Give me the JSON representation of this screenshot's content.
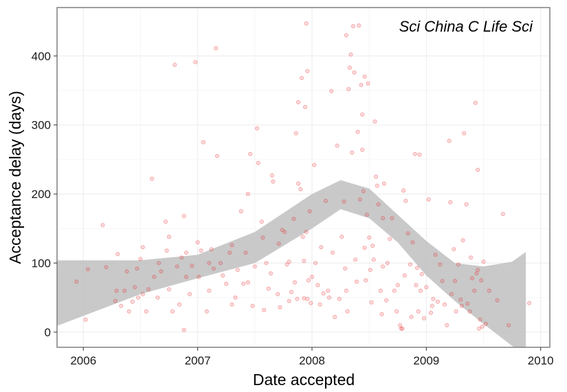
{
  "chart_data": {
    "type": "scatter",
    "title": "Sci China C Life Sci",
    "xlabel": "Date accepted",
    "ylabel": "Acceptance delay (days)",
    "xlim": [
      2005.77,
      2010.08
    ],
    "ylim": [
      -22,
      470
    ],
    "x_ticks": [
      {
        "value": 2006,
        "label": "2006"
      },
      {
        "value": 2007,
        "label": "2007"
      },
      {
        "value": 2008,
        "label": "2008"
      },
      {
        "value": 2009,
        "label": "2009"
      },
      {
        "value": 2010,
        "label": "2010"
      }
    ],
    "y_ticks": [
      {
        "value": 0,
        "label": "0"
      },
      {
        "value": 100,
        "label": "100"
      },
      {
        "value": 200,
        "label": "200"
      },
      {
        "value": 300,
        "label": "300"
      },
      {
        "value": 400,
        "label": "400"
      }
    ],
    "grid": true,
    "colors": {
      "points": "#e8191f",
      "band": "#c0c0c0",
      "grid": "#ebebeb",
      "border": "#7f7f7f"
    },
    "smooth_band": {
      "x": [
        2005.77,
        2006.5,
        2007.0,
        2007.5,
        2008.0,
        2008.25,
        2008.5,
        2008.75,
        2009.0,
        2009.25,
        2009.5,
        2009.75,
        2009.87
      ],
      "upper": [
        104,
        104,
        112,
        145,
        200,
        220,
        208,
        170,
        132,
        100,
        95,
        102,
        116
      ],
      "lower": [
        9,
        55,
        78,
        100,
        150,
        178,
        165,
        130,
        82,
        45,
        12,
        -20,
        -30
      ]
    },
    "points": [
      [
        2005.94,
        73
      ],
      [
        2006.02,
        18
      ],
      [
        2006.04,
        91
      ],
      [
        2006.17,
        155
      ],
      [
        2006.2,
        94
      ],
      [
        2006.28,
        45
      ],
      [
        2006.29,
        60
      ],
      [
        2006.3,
        113
      ],
      [
        2006.33,
        38
      ],
      [
        2006.36,
        60
      ],
      [
        2006.38,
        88
      ],
      [
        2006.4,
        30
      ],
      [
        2006.43,
        44
      ],
      [
        2006.45,
        65
      ],
      [
        2006.47,
        92
      ],
      [
        2006.48,
        50
      ],
      [
        2006.5,
        106
      ],
      [
        2006.52,
        123
      ],
      [
        2006.55,
        30
      ],
      [
        2006.57,
        62
      ],
      [
        2006.6,
        222
      ],
      [
        2006.62,
        80
      ],
      [
        2006.65,
        50
      ],
      [
        2006.68,
        88
      ],
      [
        2006.72,
        160
      ],
      [
        2006.73,
        118
      ],
      [
        2006.75,
        138
      ],
      [
        2006.75,
        62
      ],
      [
        2006.78,
        30
      ],
      [
        2006.8,
        387
      ],
      [
        2006.82,
        95
      ],
      [
        2006.84,
        40
      ],
      [
        2006.86,
        108
      ],
      [
        2006.88,
        3
      ],
      [
        2006.88,
        168
      ],
      [
        2006.9,
        80
      ],
      [
        2006.93,
        55
      ],
      [
        2006.95,
        96
      ],
      [
        2006.98,
        391
      ],
      [
        2007.0,
        130
      ],
      [
        2007.01,
        80
      ],
      [
        2007.03,
        118
      ],
      [
        2007.05,
        275
      ],
      [
        2007.08,
        30
      ],
      [
        2007.1,
        60
      ],
      [
        2007.12,
        120
      ],
      [
        2007.14,
        92
      ],
      [
        2007.16,
        411
      ],
      [
        2007.17,
        255
      ],
      [
        2007.2,
        100
      ],
      [
        2007.22,
        82
      ],
      [
        2007.25,
        70
      ],
      [
        2007.28,
        115
      ],
      [
        2007.3,
        40
      ],
      [
        2007.3,
        126
      ],
      [
        2007.33,
        50
      ],
      [
        2007.35,
        90
      ],
      [
        2007.38,
        175
      ],
      [
        2007.4,
        70
      ],
      [
        2007.42,
        115
      ],
      [
        2007.44,
        200
      ],
      [
        2007.46,
        258
      ],
      [
        2007.48,
        38
      ],
      [
        2007.5,
        95
      ],
      [
        2007.52,
        295
      ],
      [
        2007.53,
        245
      ],
      [
        2007.56,
        160
      ],
      [
        2007.57,
        137
      ],
      [
        2007.6,
        100
      ],
      [
        2007.62,
        63
      ],
      [
        2007.64,
        85
      ],
      [
        2007.65,
        227
      ],
      [
        2007.66,
        218
      ],
      [
        2007.7,
        55
      ],
      [
        2007.71,
        128
      ],
      [
        2007.72,
        36
      ],
      [
        2007.74,
        148
      ],
      [
        2007.76,
        145
      ],
      [
        2007.78,
        98
      ],
      [
        2007.8,
        45
      ],
      [
        2007.82,
        58
      ],
      [
        2007.84,
        164
      ],
      [
        2007.85,
        72
      ],
      [
        2007.86,
        288
      ],
      [
        2007.87,
        48
      ],
      [
        2007.88,
        333
      ],
      [
        2007.88,
        215
      ],
      [
        2007.9,
        207
      ],
      [
        2007.91,
        368
      ],
      [
        2007.92,
        138
      ],
      [
        2007.93,
        103
      ],
      [
        2007.93,
        49
      ],
      [
        2007.94,
        326
      ],
      [
        2007.95,
        145
      ],
      [
        2007.95,
        447
      ],
      [
        2007.96,
        378
      ],
      [
        2007.97,
        75
      ],
      [
        2007.98,
        175
      ],
      [
        2007.99,
        42
      ],
      [
        2008.02,
        242
      ],
      [
        2008.03,
        100
      ],
      [
        2008.05,
        68
      ],
      [
        2008.07,
        40
      ],
      [
        2008.08,
        123
      ],
      [
        2008.1,
        56
      ],
      [
        2008.12,
        190
      ],
      [
        2008.15,
        50
      ],
      [
        2008.17,
        349
      ],
      [
        2008.2,
        22
      ],
      [
        2008.22,
        270
      ],
      [
        2008.24,
        48
      ],
      [
        2008.26,
        138
      ],
      [
        2008.28,
        189
      ],
      [
        2008.29,
        92
      ],
      [
        2008.3,
        430
      ],
      [
        2008.31,
        30
      ],
      [
        2008.32,
        352
      ],
      [
        2008.33,
        383
      ],
      [
        2008.34,
        402
      ],
      [
        2008.35,
        260
      ],
      [
        2008.36,
        443
      ],
      [
        2008.37,
        376
      ],
      [
        2008.38,
        105
      ],
      [
        2008.39,
        73
      ],
      [
        2008.4,
        290
      ],
      [
        2008.41,
        444
      ],
      [
        2008.42,
        192
      ],
      [
        2008.43,
        358
      ],
      [
        2008.44,
        264
      ],
      [
        2008.45,
        204
      ],
      [
        2008.46,
        122
      ],
      [
        2008.47,
        75
      ],
      [
        2008.48,
        170
      ],
      [
        2008.49,
        360
      ],
      [
        2008.5,
        137
      ],
      [
        2008.51,
        90
      ],
      [
        2008.52,
        43
      ],
      [
        2008.53,
        125
      ],
      [
        2008.54,
        105
      ],
      [
        2008.55,
        305
      ],
      [
        2008.56,
        225
      ],
      [
        2008.57,
        212
      ],
      [
        2008.58,
        185
      ],
      [
        2008.6,
        60
      ],
      [
        2008.61,
        26
      ],
      [
        2008.62,
        165
      ],
      [
        2008.63,
        215
      ],
      [
        2008.65,
        46
      ],
      [
        2008.66,
        100
      ],
      [
        2008.68,
        135
      ],
      [
        2008.7,
        165
      ],
      [
        2008.72,
        60
      ],
      [
        2008.74,
        30
      ],
      [
        2008.75,
        68
      ],
      [
        2008.77,
        10
      ],
      [
        2008.78,
        5
      ],
      [
        2008.79,
        5
      ],
      [
        2008.8,
        205
      ],
      [
        2008.81,
        82
      ],
      [
        2008.82,
        190
      ],
      [
        2008.84,
        143
      ],
      [
        2008.86,
        98
      ],
      [
        2008.87,
        22
      ],
      [
        2008.88,
        130
      ],
      [
        2008.9,
        258
      ],
      [
        2008.91,
        68
      ],
      [
        2008.92,
        93
      ],
      [
        2008.93,
        30
      ],
      [
        2008.94,
        257
      ],
      [
        2008.95,
        60
      ],
      [
        2008.96,
        84
      ],
      [
        2008.98,
        20
      ],
      [
        2009.0,
        65
      ],
      [
        2009.02,
        192
      ],
      [
        2009.04,
        28
      ],
      [
        2009.06,
        48
      ],
      [
        2009.08,
        112
      ],
      [
        2009.1,
        44
      ],
      [
        2009.12,
        98
      ],
      [
        2009.14,
        74
      ],
      [
        2009.16,
        40
      ],
      [
        2009.18,
        10
      ],
      [
        2009.2,
        277
      ],
      [
        2009.21,
        188
      ],
      [
        2009.22,
        55
      ],
      [
        2009.24,
        120
      ],
      [
        2009.26,
        30
      ],
      [
        2009.28,
        98
      ],
      [
        2009.3,
        47
      ],
      [
        2009.31,
        38
      ],
      [
        2009.32,
        133
      ],
      [
        2009.33,
        288
      ],
      [
        2009.35,
        185
      ],
      [
        2009.36,
        41
      ],
      [
        2009.38,
        30
      ],
      [
        2009.39,
        108
      ],
      [
        2009.4,
        78
      ],
      [
        2009.42,
        60
      ],
      [
        2009.43,
        332
      ],
      [
        2009.44,
        85
      ],
      [
        2009.45,
        235
      ],
      [
        2009.46,
        5
      ],
      [
        2009.47,
        18
      ],
      [
        2009.48,
        75
      ],
      [
        2009.49,
        8
      ],
      [
        2009.5,
        102
      ],
      [
        2009.52,
        12
      ],
      [
        2009.55,
        60
      ],
      [
        2009.62,
        46
      ],
      [
        2009.67,
        171
      ],
      [
        2009.72,
        10
      ],
      [
        2009.9,
        42
      ],
      [
        2008.14,
        60
      ],
      [
        2008.44,
        315
      ],
      [
        2008.46,
        370
      ],
      [
        2007.96,
        48
      ],
      [
        2008.0,
        80
      ],
      [
        2007.8,
        102
      ],
      [
        2007.58,
        32
      ],
      [
        2007.44,
        72
      ],
      [
        2007.1,
        100
      ],
      [
        2006.9,
        115
      ],
      [
        2006.66,
        100
      ],
      [
        2006.52,
        55
      ],
      [
        2008.62,
        95
      ],
      [
        2008.3,
        60
      ],
      [
        2008.18,
        115
      ],
      [
        2009.25,
        74
      ],
      [
        2009.45,
        90
      ],
      [
        2009.05,
        38
      ]
    ]
  }
}
